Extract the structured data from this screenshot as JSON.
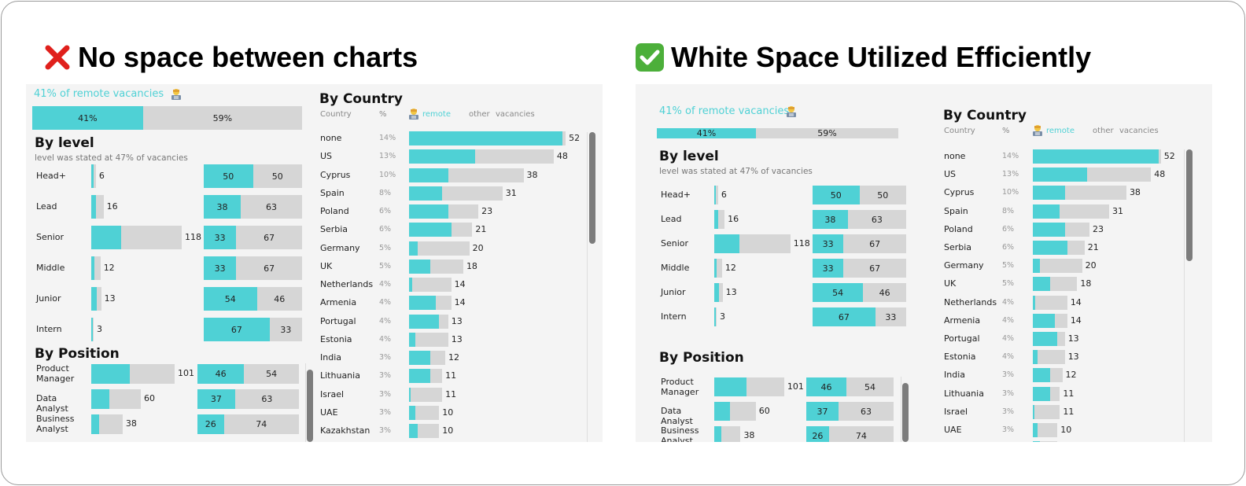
{
  "headings": {
    "bad": {
      "icon": "red-cross-mark-icon",
      "text": "No space between charts"
    },
    "good": {
      "icon": "green-check-mark-icon",
      "text": "White Space Utilized Efficiently"
    }
  },
  "colors": {
    "remote": "#4fd1d5",
    "other": "#d6d6d6",
    "panel": "#f4f4f4"
  },
  "dashboard": {
    "remote_title": "41% of remote vacancies",
    "remote_icon": "technologist-icon",
    "level_title": "By level",
    "level_subtitle": "level was stated at 47% of vacancies",
    "position_title": "By Position",
    "country_title": "By Country",
    "country_headers": {
      "country": "Country",
      "pct": "%",
      "remote": "remote",
      "other": "other",
      "vacancies": "vacancies"
    }
  },
  "chart_data": [
    {
      "type": "bar",
      "title": "41% of remote vacancies",
      "categories": [
        "remote",
        "other"
      ],
      "values": [
        41,
        59
      ],
      "labels": [
        "41%",
        "59%"
      ]
    },
    {
      "type": "bar",
      "title": "By level",
      "subtitle": "level was stated at 47% of vacancies",
      "categories": [
        "Head+",
        "Lead",
        "Senior",
        "Middle",
        "Junior",
        "Intern"
      ],
      "totals": [
        6,
        16,
        118,
        12,
        13,
        3
      ],
      "remote_pct": [
        50,
        38,
        33,
        33,
        54,
        67
      ],
      "other_pct": [
        50,
        63,
        67,
        67,
        46,
        33
      ]
    },
    {
      "type": "bar",
      "title": "By Position",
      "categories": [
        "Product Manager",
        "Data Analyst",
        "Business Analyst"
      ],
      "totals": [
        101,
        60,
        38
      ],
      "remote_pct": [
        46,
        37,
        26
      ],
      "other_pct": [
        54,
        63,
        74
      ]
    },
    {
      "type": "bar",
      "title": "By Country",
      "categories": [
        "none",
        "US",
        "Cyprus",
        "Spain",
        "Poland",
        "Serbia",
        "Germany",
        "UK",
        "Netherlands",
        "Armenia",
        "Portugal",
        "Estonia",
        "India",
        "Lithuania",
        "Israel",
        "UAE",
        "Kazakhstan"
      ],
      "share": [
        "14%",
        "13%",
        "10%",
        "8%",
        "6%",
        "6%",
        "5%",
        "5%",
        "4%",
        "4%",
        "4%",
        "4%",
        "3%",
        "3%",
        "3%",
        "3%",
        "3%"
      ],
      "totals": [
        52,
        48,
        38,
        31,
        23,
        21,
        20,
        18,
        14,
        14,
        13,
        13,
        12,
        11,
        11,
        10,
        10
      ],
      "remote": [
        51,
        22,
        13,
        11,
        13,
        14,
        3,
        7,
        1,
        9,
        10,
        2,
        7,
        7,
        0,
        2,
        3
      ]
    }
  ]
}
